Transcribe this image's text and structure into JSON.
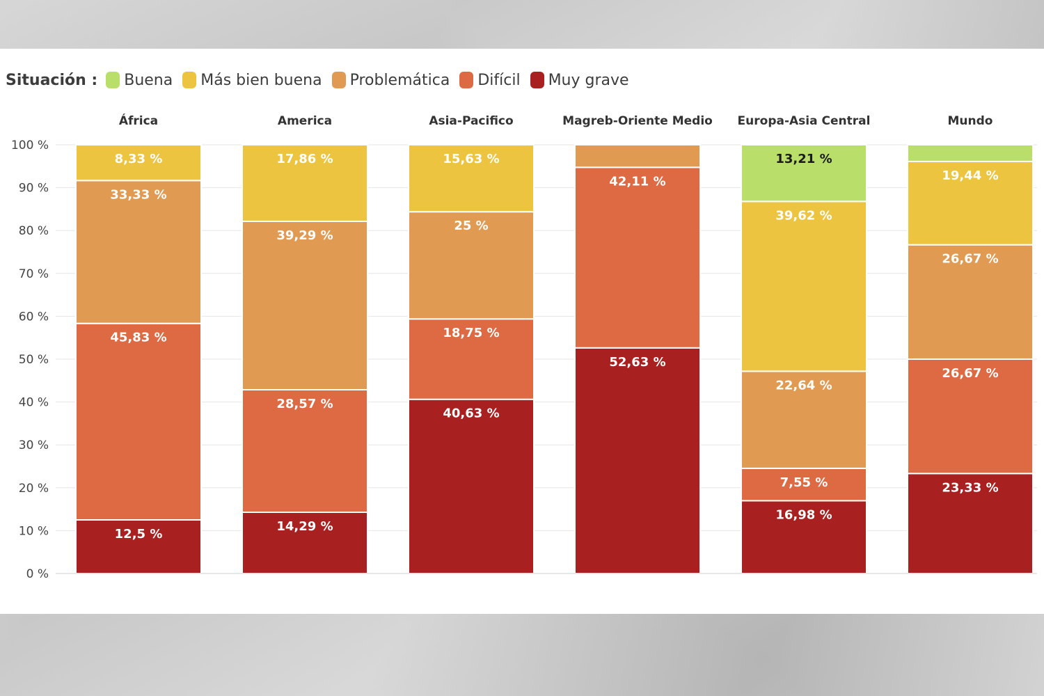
{
  "legend": {
    "title": "Situación :",
    "items": [
      {
        "label": "Buena",
        "color": "#b9df6a"
      },
      {
        "label": "Más bien buena",
        "color": "#ecc43f"
      },
      {
        "label": "Problemática",
        "color": "#e19a52"
      },
      {
        "label": "Difícil",
        "color": "#dd6a42"
      },
      {
        "label": "Muy grave",
        "color": "#a8201f"
      }
    ]
  },
  "chart_data": {
    "type": "bar",
    "stacked": true,
    "categories": [
      "África",
      "America",
      "Asia-Pacifico",
      "Magreb-Oriente Medio",
      "Europa-Asia Central",
      "Mundo"
    ],
    "series": [
      {
        "name": "Muy grave",
        "color": "#a8201f",
        "values": [
          12.5,
          14.29,
          40.63,
          52.63,
          16.98,
          23.33
        ],
        "labels": [
          "12,5 %",
          "14,29 %",
          "40,63 %",
          "52,63 %",
          "16,98 %",
          "23,33 %"
        ]
      },
      {
        "name": "Difícil",
        "color": "#dd6a42",
        "values": [
          45.83,
          28.57,
          18.75,
          42.11,
          7.55,
          26.67
        ],
        "labels": [
          "45,83 %",
          "28,57 %",
          "18,75 %",
          "42,11 %",
          "7,55 %",
          "26,67 %"
        ]
      },
      {
        "name": "Problemática",
        "color": "#e19a52",
        "values": [
          33.33,
          39.29,
          25,
          5.26,
          22.64,
          26.67
        ],
        "labels": [
          "33,33 %",
          "39,29 %",
          "25 %",
          "",
          "22,64 %",
          "26,67 %"
        ]
      },
      {
        "name": "Más bien buena",
        "color": "#ecc43f",
        "values": [
          8.33,
          17.86,
          15.63,
          0,
          39.62,
          19.44
        ],
        "labels": [
          "8,33 %",
          "17,86 %",
          "15,63 %",
          "",
          "39,62 %",
          "19,44 %"
        ]
      },
      {
        "name": "Buena",
        "color": "#b9df6a",
        "values": [
          0,
          0,
          0,
          0,
          13.21,
          3.89
        ],
        "labels": [
          "",
          "",
          "",
          "",
          "13,21 %",
          ""
        ]
      }
    ],
    "ylim": [
      0,
      100
    ],
    "yticks": [
      "0 %",
      "10 %",
      "20 %",
      "30 %",
      "40 %",
      "50 %",
      "60 %",
      "70 %",
      "80 %",
      "90 %",
      "100 %"
    ],
    "grid": true,
    "legend_position": "top-left"
  }
}
